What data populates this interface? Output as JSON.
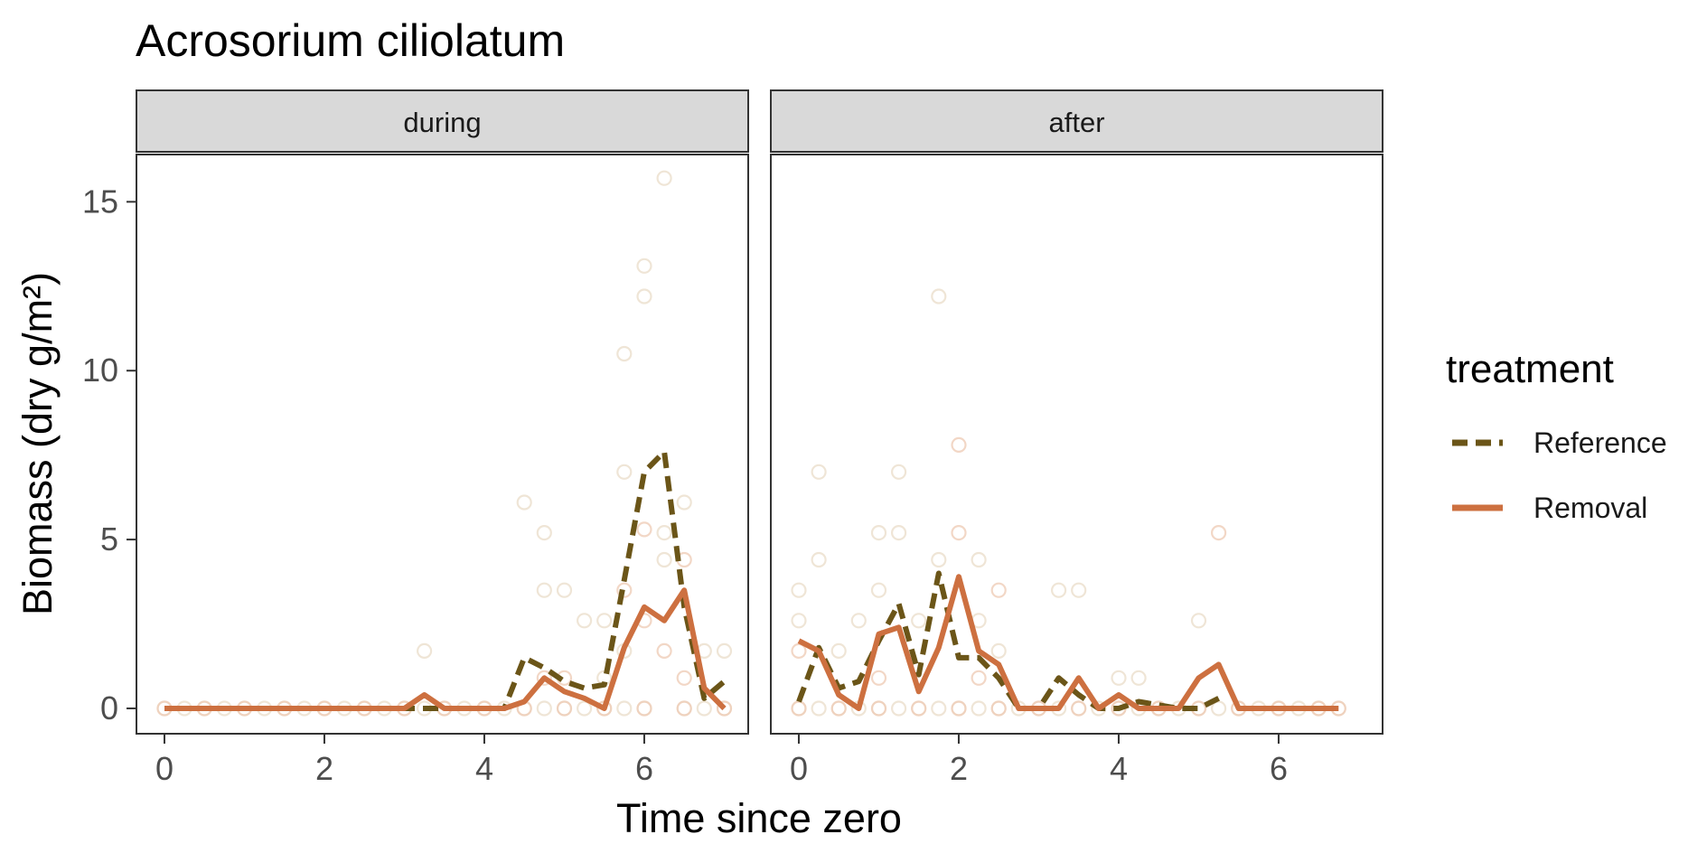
{
  "chart_data": {
    "type": "line",
    "title": "Acrosorium ciliolatum",
    "xlabel": "Time since zero",
    "ylabel": "Biomass (dry g/m²)",
    "xlim": [
      -0.35,
      7.3
    ],
    "ylim": [
      -0.75,
      16.4
    ],
    "x_ticks": [
      0,
      2,
      4,
      6
    ],
    "y_ticks": [
      0,
      5,
      10,
      15
    ],
    "grid": false,
    "legend": {
      "title": "treatment",
      "position": "right",
      "entries": [
        {
          "label": "Reference",
          "color": "#6b5518",
          "style": "dashed"
        },
        {
          "label": "Removal",
          "color": "#cd7040",
          "style": "solid"
        }
      ]
    },
    "colors": {
      "Reference": "#6b5518",
      "Removal": "#cd7040",
      "strip_fill": "#d9d9d9"
    },
    "panels": [
      {
        "strip": "during",
        "series": [
          {
            "name": "Reference",
            "x": [
              0,
              0.25,
              0.5,
              0.75,
              1,
              1.25,
              1.5,
              1.75,
              2,
              2.25,
              2.5,
              2.75,
              3,
              3.25,
              3.5,
              3.75,
              4,
              4.25,
              4.5,
              4.75,
              5,
              5.25,
              5.5,
              5.75,
              6,
              6.25,
              6.5,
              6.75,
              7
            ],
            "y": [
              0,
              0,
              0,
              0,
              0,
              0,
              0,
              0,
              0,
              0,
              0,
              0,
              0,
              0,
              0,
              0,
              0,
              0,
              1.5,
              1.2,
              0.8,
              0.6,
              0.7,
              3.8,
              7.0,
              7.6,
              3.0,
              0.3,
              0.8
            ]
          },
          {
            "name": "Removal",
            "x": [
              0,
              0.25,
              0.5,
              0.75,
              1,
              1.25,
              1.5,
              1.75,
              2,
              2.25,
              2.5,
              2.75,
              3,
              3.25,
              3.5,
              3.75,
              4,
              4.25,
              4.5,
              4.75,
              5,
              5.25,
              5.5,
              5.75,
              6,
              6.25,
              6.5,
              6.75,
              7
            ],
            "y": [
              0,
              0,
              0,
              0,
              0,
              0,
              0,
              0,
              0,
              0,
              0,
              0,
              0,
              0.4,
              0,
              0,
              0,
              0,
              0.2,
              0.9,
              0.5,
              0.3,
              0,
              1.8,
              3.0,
              2.6,
              3.5,
              0.6,
              0
            ]
          }
        ],
        "points": {
          "Reference": [
            [
              6.25,
              15.7
            ],
            [
              6.0,
              13.1
            ],
            [
              6.0,
              12.2
            ],
            [
              5.75,
              10.5
            ],
            [
              5.75,
              7.0
            ],
            [
              4.5,
              6.1
            ],
            [
              6.5,
              6.1
            ],
            [
              4.75,
              5.2
            ],
            [
              6.25,
              5.2
            ],
            [
              4.75,
              3.5
            ],
            [
              5.0,
              3.5
            ],
            [
              5.25,
              2.6
            ],
            [
              5.5,
              2.6
            ],
            [
              6.25,
              4.4
            ],
            [
              5.75,
              1.7
            ],
            [
              3.25,
              1.7
            ],
            [
              7.0,
              1.7
            ],
            [
              6.75,
              1.7
            ],
            [
              5.5,
              0.9
            ],
            [
              0,
              0
            ],
            [
              0.25,
              0
            ],
            [
              0.5,
              0
            ],
            [
              0.75,
              0
            ],
            [
              1,
              0
            ],
            [
              1.25,
              0
            ],
            [
              1.5,
              0
            ],
            [
              1.75,
              0
            ],
            [
              2,
              0
            ],
            [
              2.25,
              0
            ],
            [
              2.5,
              0
            ],
            [
              2.75,
              0
            ],
            [
              3,
              0
            ],
            [
              3.25,
              0
            ],
            [
              3.5,
              0
            ],
            [
              3.75,
              0
            ],
            [
              4,
              0
            ],
            [
              4.25,
              0
            ],
            [
              4.5,
              0
            ],
            [
              4.75,
              0
            ],
            [
              5,
              0
            ],
            [
              5.25,
              0
            ],
            [
              5.5,
              0
            ],
            [
              5.75,
              0
            ],
            [
              6,
              0
            ],
            [
              6.5,
              0
            ],
            [
              6.75,
              0
            ],
            [
              7,
              0
            ]
          ],
          "Removal": [
            [
              6.0,
              5.3
            ],
            [
              6.5,
              4.4
            ],
            [
              5.75,
              3.5
            ],
            [
              6.25,
              1.7
            ],
            [
              6.0,
              2.6
            ],
            [
              4.75,
              0.9
            ],
            [
              5.0,
              0.9
            ],
            [
              6.5,
              0.9
            ],
            [
              0,
              0
            ],
            [
              0.5,
              0
            ],
            [
              1,
              0
            ],
            [
              1.5,
              0
            ],
            [
              2,
              0
            ],
            [
              2.5,
              0
            ],
            [
              3,
              0
            ],
            [
              3.5,
              0
            ],
            [
              4,
              0
            ],
            [
              4.5,
              0
            ],
            [
              5,
              0
            ],
            [
              5.5,
              0
            ],
            [
              6,
              0
            ],
            [
              6.5,
              0
            ],
            [
              7,
              0
            ]
          ]
        }
      },
      {
        "strip": "after",
        "series": [
          {
            "name": "Reference",
            "x": [
              0,
              0.25,
              0.5,
              0.75,
              1,
              1.25,
              1.5,
              1.75,
              2,
              2.25,
              2.5,
              2.75,
              3,
              3.25,
              3.5,
              3.75,
              4,
              4.25,
              4.5,
              4.75,
              5,
              5.25
            ],
            "y": [
              0.2,
              1.8,
              0.6,
              0.8,
              2.0,
              3.1,
              1.0,
              4.0,
              1.5,
              1.5,
              0.9,
              0,
              0,
              0.9,
              0.4,
              0,
              0,
              0.2,
              0.1,
              0,
              0,
              0.3
            ]
          },
          {
            "name": "Removal",
            "x": [
              0,
              0.25,
              0.5,
              0.75,
              1,
              1.25,
              1.5,
              1.75,
              2,
              2.25,
              2.5,
              2.75,
              3,
              3.25,
              3.5,
              3.75,
              4,
              4.25,
              4.5,
              4.75,
              5,
              5.25,
              5.5,
              5.75,
              6,
              6.25,
              6.5,
              6.75
            ],
            "y": [
              2.0,
              1.7,
              0.4,
              0,
              2.2,
              2.4,
              0.5,
              1.8,
              3.9,
              1.7,
              1.3,
              0,
              0,
              0,
              0.9,
              0,
              0.4,
              0,
              0,
              0,
              0.9,
              1.3,
              0,
              0,
              0,
              0,
              0,
              0
            ]
          }
        ],
        "points": {
          "Reference": [
            [
              1.75,
              12.2
            ],
            [
              0.25,
              7.0
            ],
            [
              1.25,
              7.0
            ],
            [
              1.0,
              5.2
            ],
            [
              1.25,
              5.2
            ],
            [
              0.25,
              4.4
            ],
            [
              1.75,
              4.4
            ],
            [
              2.25,
              4.4
            ],
            [
              0.0,
              3.5
            ],
            [
              1.0,
              3.5
            ],
            [
              1.5,
              2.6
            ],
            [
              2.25,
              2.6
            ],
            [
              3.25,
              3.5
            ],
            [
              3.5,
              3.5
            ],
            [
              0.0,
              2.6
            ],
            [
              0.75,
              2.6
            ],
            [
              2.5,
              1.7
            ],
            [
              4.0,
              0.9
            ],
            [
              4.25,
              0.9
            ],
            [
              5.0,
              2.6
            ],
            [
              0.5,
              1.7
            ],
            [
              0,
              0
            ],
            [
              0.25,
              0
            ],
            [
              0.5,
              0
            ],
            [
              0.75,
              0
            ],
            [
              1,
              0
            ],
            [
              1.25,
              0
            ],
            [
              1.5,
              0
            ],
            [
              1.75,
              0
            ],
            [
              2,
              0
            ],
            [
              2.25,
              0
            ],
            [
              2.5,
              0
            ],
            [
              2.75,
              0
            ],
            [
              3,
              0
            ],
            [
              3.25,
              0
            ],
            [
              3.5,
              0
            ],
            [
              3.75,
              0
            ],
            [
              4,
              0
            ],
            [
              4.25,
              0
            ],
            [
              4.5,
              0
            ],
            [
              4.75,
              0
            ],
            [
              5,
              0
            ],
            [
              5.25,
              0
            ],
            [
              5.5,
              0
            ],
            [
              5.75,
              0
            ],
            [
              6,
              0
            ],
            [
              6.25,
              0
            ],
            [
              6.5,
              0
            ],
            [
              6.75,
              0
            ]
          ],
          "Removal": [
            [
              2.0,
              7.8
            ],
            [
              2.0,
              5.2
            ],
            [
              5.25,
              5.2
            ],
            [
              2.5,
              3.5
            ],
            [
              0.0,
              1.7
            ],
            [
              2.25,
              0.9
            ],
            [
              1.0,
              0.9
            ],
            [
              0,
              0
            ],
            [
              0.5,
              0
            ],
            [
              1,
              0
            ],
            [
              1.5,
              0
            ],
            [
              2,
              0
            ],
            [
              2.5,
              0
            ],
            [
              3,
              0
            ],
            [
              3.5,
              0
            ],
            [
              4,
              0
            ],
            [
              4.5,
              0
            ],
            [
              5,
              0
            ],
            [
              5.5,
              0
            ],
            [
              6,
              0
            ],
            [
              6.5,
              0
            ],
            [
              6.75,
              0
            ]
          ]
        }
      }
    ]
  }
}
